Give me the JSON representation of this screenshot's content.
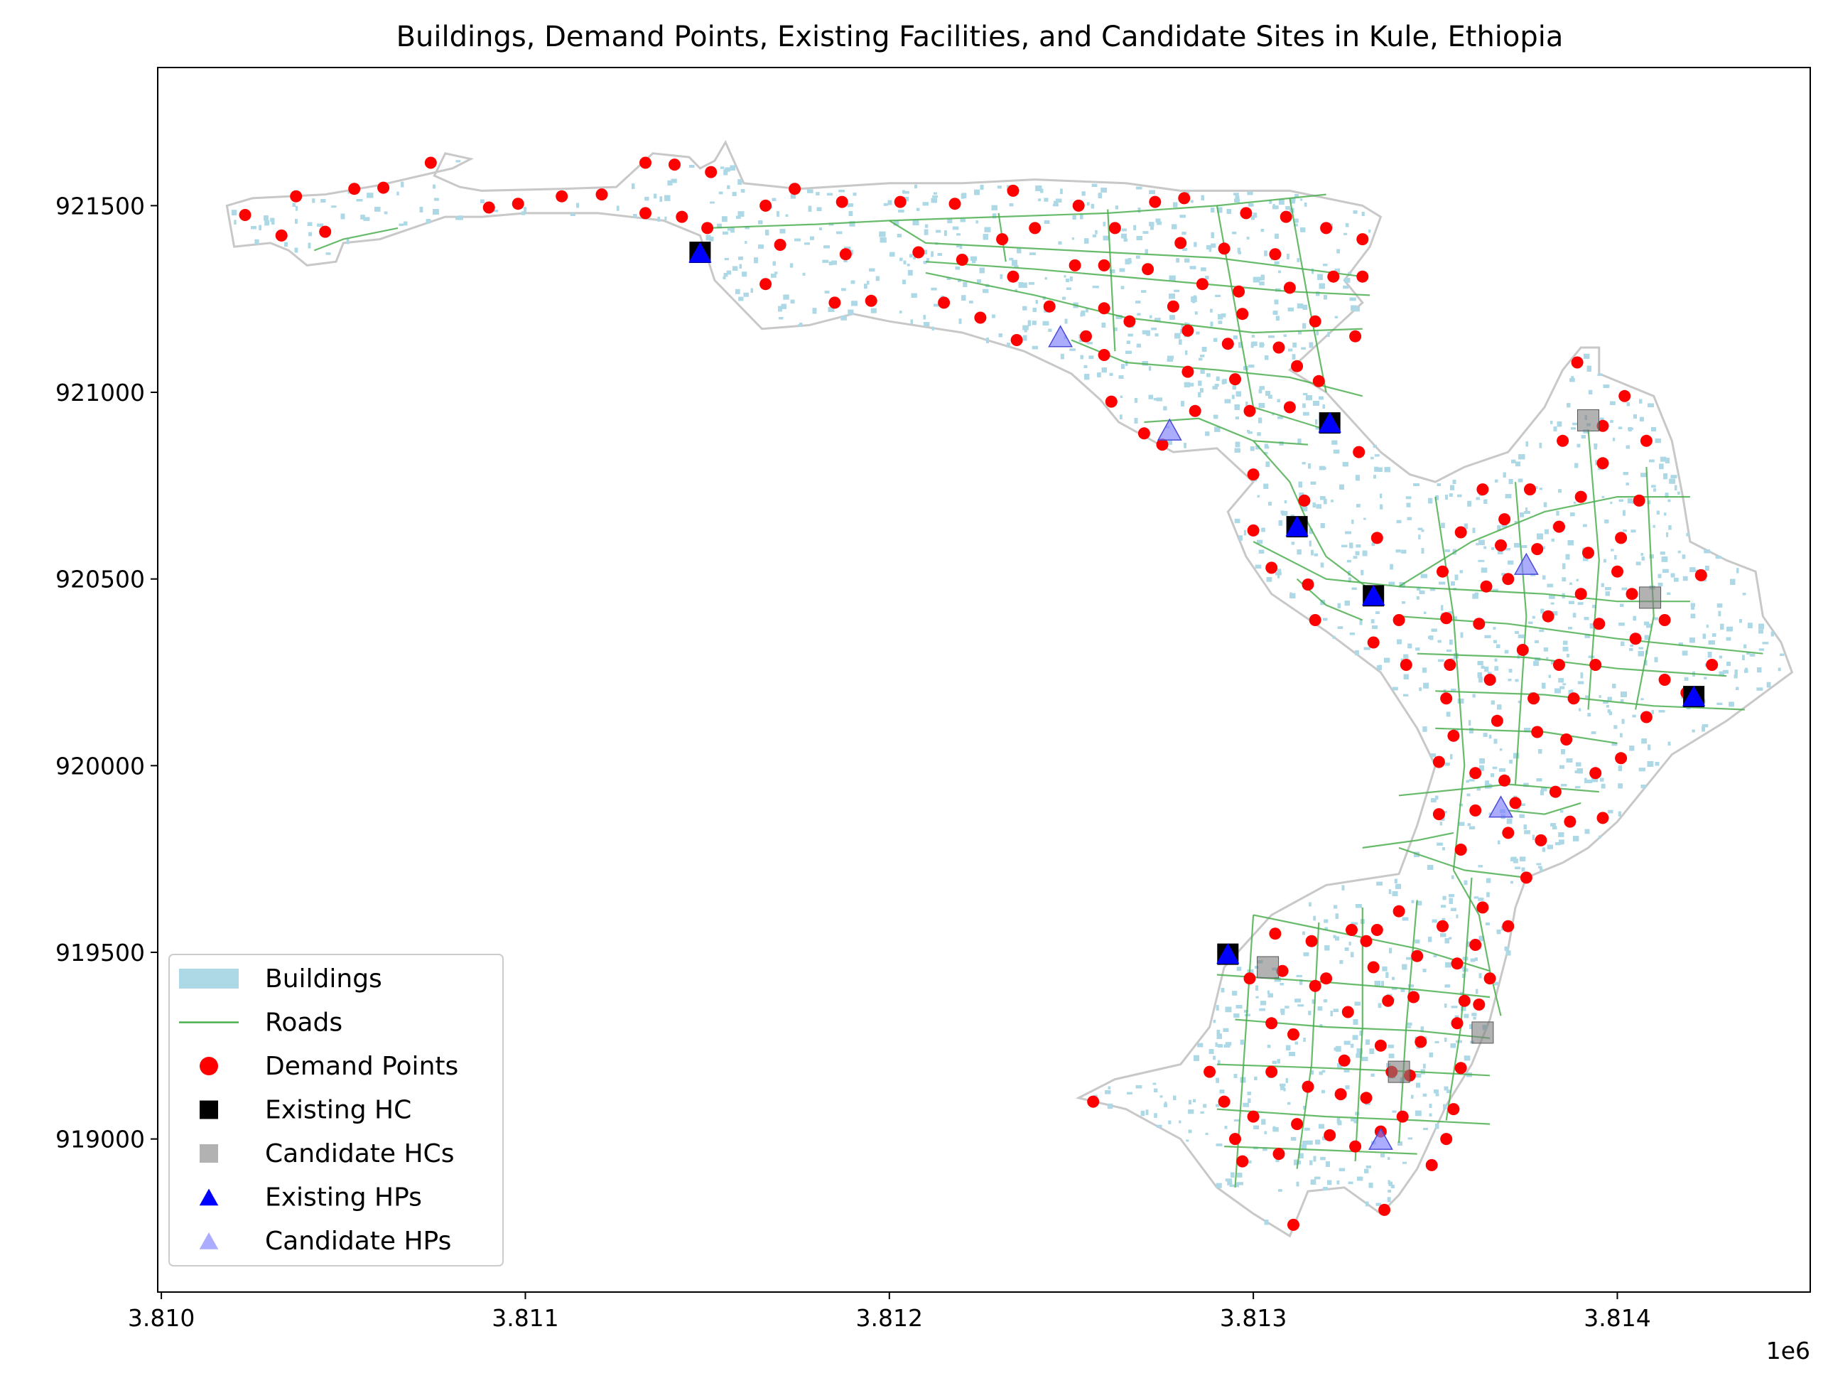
{
  "chart_data": {
    "type": "scatter",
    "title": "Buildings, Demand Points, Existing Facilities, and Candidate Sites in Kule, Ethiopia",
    "xlabel": "",
    "ylabel": "",
    "x_offset_label": "1e6",
    "xlim": [
      3.80999,
      3.81453
    ],
    "ylim": [
      918590,
      921870
    ],
    "x_ticks": [
      3.81,
      3.811,
      3.812,
      3.813,
      3.814
    ],
    "x_tick_labels": [
      "3.810",
      "3.811",
      "3.812",
      "3.813",
      "3.814"
    ],
    "y_ticks": [
      919000,
      919500,
      920000,
      920500,
      921000,
      921500
    ],
    "y_tick_labels": [
      "919000",
      "919500",
      "920000",
      "920500",
      "921000",
      "921500"
    ],
    "grid": false,
    "legend_position": "lower-left",
    "colors": {
      "buildings": "#add8e6",
      "roads": "#4caf50",
      "boundary": "#c8c8c8",
      "demand": "#ff0000",
      "existing_hc": "#000000",
      "candidate_hc": "#7f7f7f",
      "existing_hp": "#0000ff",
      "candidate_hp": "#8080ff"
    },
    "legend": [
      {
        "label": "Buildings",
        "key": "buildings"
      },
      {
        "label": "Roads",
        "key": "roads"
      },
      {
        "label": "Demand Points",
        "key": "demand"
      },
      {
        "label": "Existing HC",
        "key": "existing_hc"
      },
      {
        "label": "Candidate HCs",
        "key": "candidate_hc"
      },
      {
        "label": "Existing HPs",
        "key": "existing_hp"
      },
      {
        "label": "Candidate HPs",
        "key": "candidate_hp"
      }
    ],
    "existing_hc": [
      [
        3.81148,
        921375
      ],
      [
        3.81321,
        920918
      ],
      [
        3.81312,
        920640
      ],
      [
        3.81333,
        920455
      ],
      [
        3.81293,
        919495
      ],
      [
        3.81421,
        920185
      ]
    ],
    "candidate_hc": [
      [
        3.81392,
        920925
      ],
      [
        3.81409,
        920450
      ],
      [
        3.81304,
        919460
      ],
      [
        3.8134,
        919180
      ],
      [
        3.81363,
        919285
      ]
    ],
    "existing_hp": [
      [
        3.81148,
        921370
      ],
      [
        3.81321,
        920915
      ],
      [
        3.81312,
        920637
      ],
      [
        3.81333,
        920452
      ],
      [
        3.81293,
        919492
      ],
      [
        3.81421,
        920182
      ]
    ],
    "candidate_hp": [
      [
        3.81247,
        921145
      ],
      [
        3.81277,
        920895
      ],
      [
        3.81375,
        920535
      ],
      [
        3.81368,
        919885
      ],
      [
        3.81335,
        918995
      ]
    ],
    "demand_points": [
      [
        3.81023,
        921475
      ],
      [
        3.81033,
        921420
      ],
      [
        3.81037,
        921525
      ],
      [
        3.81045,
        921430
      ],
      [
        3.81053,
        921545
      ],
      [
        3.81061,
        921548
      ],
      [
        3.81074,
        921615
      ],
      [
        3.8109,
        921495
      ],
      [
        3.81098,
        921505
      ],
      [
        3.8111,
        921525
      ],
      [
        3.81121,
        921530
      ],
      [
        3.81133,
        921480
      ],
      [
        3.81133,
        921615
      ],
      [
        3.81141,
        921610
      ],
      [
        3.81143,
        921470
      ],
      [
        3.8115,
        921440
      ],
      [
        3.81151,
        921590
      ],
      [
        3.81166,
        921500
      ],
      [
        3.8117,
        921395
      ],
      [
        3.81174,
        921545
      ],
      [
        3.81166,
        921290
      ],
      [
        3.81185,
        921240
      ],
      [
        3.81187,
        921510
      ],
      [
        3.81188,
        921370
      ],
      [
        3.81195,
        921245
      ],
      [
        3.81203,
        921510
      ],
      [
        3.81208,
        921375
      ],
      [
        3.81215,
        921240
      ],
      [
        3.81218,
        921505
      ],
      [
        3.8122,
        921355
      ],
      [
        3.81225,
        921200
      ],
      [
        3.81231,
        921410
      ],
      [
        3.81234,
        921310
      ],
      [
        3.81234,
        921540
      ],
      [
        3.81235,
        921140
      ],
      [
        3.8124,
        921440
      ],
      [
        3.81244,
        921230
      ],
      [
        3.81251,
        921340
      ],
      [
        3.81252,
        921500
      ],
      [
        3.81254,
        921150
      ],
      [
        3.81262,
        921440
      ],
      [
        3.81259,
        921340
      ],
      [
        3.81259,
        921225
      ],
      [
        3.81259,
        921100
      ],
      [
        3.81261,
        920975
      ],
      [
        3.81266,
        921190
      ],
      [
        3.81271,
        921330
      ],
      [
        3.8127,
        920890
      ],
      [
        3.81273,
        921510
      ],
      [
        3.81275,
        920860
      ],
      [
        3.81278,
        921230
      ],
      [
        3.8128,
        921400
      ],
      [
        3.81281,
        921520
      ],
      [
        3.81282,
        921165
      ],
      [
        3.81282,
        921055
      ],
      [
        3.81284,
        920950
      ],
      [
        3.81286,
        921290
      ],
      [
        3.81292,
        921385
      ],
      [
        3.81293,
        921130
      ],
      [
        3.81295,
        921035
      ],
      [
        3.81296,
        921270
      ],
      [
        3.81297,
        921210
      ],
      [
        3.81298,
        921480
      ],
      [
        3.81299,
        920950
      ],
      [
        3.81306,
        921370
      ],
      [
        3.81307,
        921120
      ],
      [
        3.8131,
        921280
      ],
      [
        3.81309,
        921470
      ],
      [
        3.8131,
        920960
      ],
      [
        3.81312,
        921070
      ],
      [
        3.81317,
        921190
      ],
      [
        3.81318,
        921030
      ],
      [
        3.8132,
        921440
      ],
      [
        3.81322,
        921310
      ],
      [
        3.81328,
        921150
      ],
      [
        3.8133,
        921410
      ],
      [
        3.8133,
        921310
      ],
      [
        3.81329,
        920840
      ],
      [
        3.813,
        920780
      ],
      [
        3.813,
        920630
      ],
      [
        3.81305,
        920530
      ],
      [
        3.81314,
        920710
      ],
      [
        3.81315,
        920485
      ],
      [
        3.81317,
        920390
      ],
      [
        3.81334,
        920610
      ],
      [
        3.81333,
        920330
      ],
      [
        3.8134,
        920390
      ],
      [
        3.81342,
        920270
      ],
      [
        3.81352,
        920520
      ],
      [
        3.81353,
        920395
      ],
      [
        3.81353,
        920180
      ],
      [
        3.81351,
        920010
      ],
      [
        3.81351,
        919870
      ],
      [
        3.81354,
        920270
      ],
      [
        3.81355,
        920080
      ],
      [
        3.81357,
        920625
      ],
      [
        3.81357,
        919775
      ],
      [
        3.81361,
        919980
      ],
      [
        3.81361,
        919880
      ],
      [
        3.81362,
        920380
      ],
      [
        3.81363,
        920740
      ],
      [
        3.81364,
        920480
      ],
      [
        3.81365,
        920230
      ],
      [
        3.81367,
        920120
      ],
      [
        3.81368,
        920590
      ],
      [
        3.81369,
        920660
      ],
      [
        3.81369,
        919960
      ],
      [
        3.8137,
        920500
      ],
      [
        3.8137,
        919820
      ],
      [
        3.81372,
        919900
      ],
      [
        3.81374,
        920310
      ],
      [
        3.81376,
        920740
      ],
      [
        3.81377,
        920180
      ],
      [
        3.81378,
        920090
      ],
      [
        3.81378,
        920580
      ],
      [
        3.81379,
        919800
      ],
      [
        3.81375,
        919700
      ],
      [
        3.81381,
        920400
      ],
      [
        3.81383,
        919930
      ],
      [
        3.81384,
        920270
      ],
      [
        3.81384,
        920640
      ],
      [
        3.81385,
        920870
      ],
      [
        3.81386,
        920070
      ],
      [
        3.81387,
        919850
      ],
      [
        3.81388,
        920180
      ],
      [
        3.81389,
        921080
      ],
      [
        3.8139,
        920460
      ],
      [
        3.8139,
        920720
      ],
      [
        3.81392,
        920570
      ],
      [
        3.81394,
        919980
      ],
      [
        3.81394,
        920270
      ],
      [
        3.81395,
        920380
      ],
      [
        3.81396,
        920910
      ],
      [
        3.81396,
        919860
      ],
      [
        3.81396,
        920810
      ],
      [
        3.814,
        920520
      ],
      [
        3.81401,
        920020
      ],
      [
        3.81401,
        920610
      ],
      [
        3.81402,
        920990
      ],
      [
        3.81404,
        920460
      ],
      [
        3.81405,
        920340
      ],
      [
        3.81406,
        920710
      ],
      [
        3.81408,
        920870
      ],
      [
        3.81408,
        920130
      ],
      [
        3.81413,
        920390
      ],
      [
        3.81413,
        920230
      ],
      [
        3.81419,
        920195
      ],
      [
        3.81423,
        920510
      ],
      [
        3.81426,
        920270
      ],
      [
        3.81256,
        919100
      ],
      [
        3.81288,
        919180
      ],
      [
        3.81292,
        919100
      ],
      [
        3.81295,
        919000
      ],
      [
        3.81297,
        918940
      ],
      [
        3.81299,
        919430
      ],
      [
        3.813,
        919060
      ],
      [
        3.81305,
        919310
      ],
      [
        3.81305,
        919180
      ],
      [
        3.81306,
        919550
      ],
      [
        3.81307,
        918960
      ],
      [
        3.81308,
        919450
      ],
      [
        3.81311,
        918770
      ],
      [
        3.81311,
        919280
      ],
      [
        3.81312,
        919040
      ],
      [
        3.81315,
        919140
      ],
      [
        3.81316,
        919530
      ],
      [
        3.81317,
        919410
      ],
      [
        3.8132,
        919430
      ],
      [
        3.81321,
        919010
      ],
      [
        3.81324,
        919120
      ],
      [
        3.81325,
        919210
      ],
      [
        3.81326,
        919340
      ],
      [
        3.81327,
        919560
      ],
      [
        3.81328,
        918980
      ],
      [
        3.81331,
        919110
      ],
      [
        3.81331,
        919530
      ],
      [
        3.81333,
        919460
      ],
      [
        3.81334,
        919560
      ],
      [
        3.81335,
        919250
      ],
      [
        3.81335,
        919020
      ],
      [
        3.81336,
        918810
      ],
      [
        3.81337,
        919370
      ],
      [
        3.81338,
        919180
      ],
      [
        3.8134,
        919610
      ],
      [
        3.81341,
        919060
      ],
      [
        3.81343,
        919170
      ],
      [
        3.81344,
        919380
      ],
      [
        3.81345,
        919490
      ],
      [
        3.81346,
        919260
      ],
      [
        3.81349,
        918930
      ],
      [
        3.81352,
        919570
      ],
      [
        3.81353,
        919000
      ],
      [
        3.81355,
        919080
      ],
      [
        3.81356,
        919310
      ],
      [
        3.81356,
        919470
      ],
      [
        3.81357,
        919190
      ],
      [
        3.81358,
        919370
      ],
      [
        3.81361,
        919520
      ],
      [
        3.81362,
        919360
      ],
      [
        3.81363,
        919620
      ],
      [
        3.81365,
        919430
      ],
      [
        3.8137,
        919570
      ]
    ],
    "buildings_note": "",
    "roads_note": ""
  }
}
